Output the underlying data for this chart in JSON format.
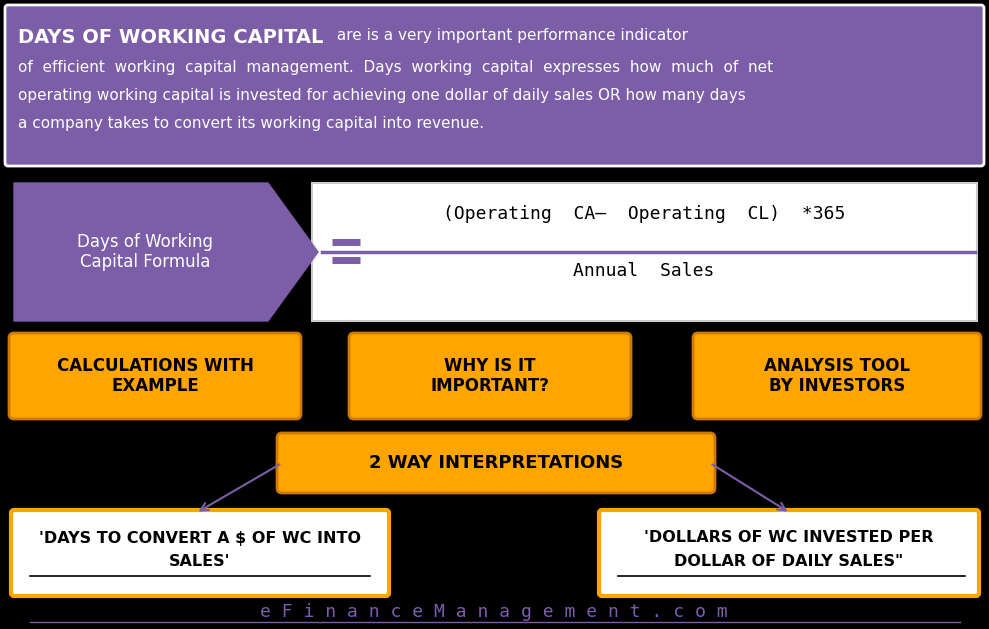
{
  "bg_color": "#000000",
  "title_box_color": "#7b5ea7",
  "title_bold_text": "DAYS OF WORKING CAPITAL",
  "arrow_color": "#7b5ea7",
  "arrow_label": "Days of Working\nCapital Formula",
  "formula_numerator": "(Operating  CA–  Operating  CL)  *365",
  "formula_denominator": "Annual  Sales",
  "formula_line_color": "#7b5ea7",
  "orange_color": "#FFA500",
  "orange_dark": "#cc7a00",
  "btn1": "CALCULATIONS WITH\nEXAMPLE",
  "btn2": "WHY IS IT\nIMPORTANT?",
  "btn3": "ANALYSIS TOOL\nBY INVESTORS",
  "interp_label": "2 WAY INTERPRETATIONS",
  "left_box_line1": "'DAYS TO CONVERT A $ OF WC INTO",
  "left_box_line2": "SALES'",
  "right_box_line1": "'DOLLARS OF WC INVESTED PER",
  "right_box_line2": "DOLLAR OF DAILY SALES\"",
  "footer_text": "e F i n a n c e M a n a g e m e n t . c o m",
  "footer_color": "#7b5ea7",
  "white": "#ffffff",
  "black": "#000000",
  "body_line1": "of  efficient  working  capital  management.  Days  working  capital  expresses  how  much  of  net",
  "body_line2": "operating working capital is invested for achieving one dollar of daily sales OR how many days",
  "body_line3": "a company takes to convert its working capital into revenue.",
  "title_suffix": " are is a very important performance indicator"
}
